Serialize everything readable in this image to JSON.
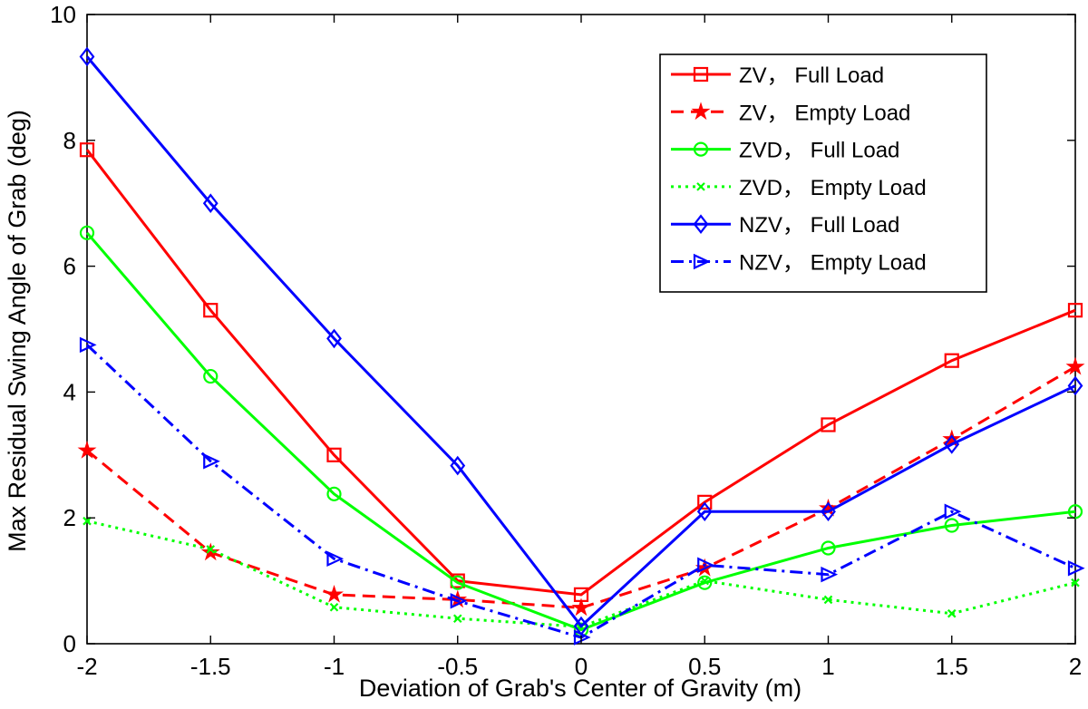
{
  "chart_data": {
    "type": "line",
    "title": "",
    "xlabel": "Deviation of Grab's Center of Gravity (m)",
    "ylabel": "Max Residual Swing Angle of Grab (deg)",
    "xlim": [
      -2,
      2
    ],
    "ylim": [
      0,
      10
    ],
    "xticks": [
      "-2",
      "-1.5",
      "-1",
      "-0.5",
      "0",
      "0.5",
      "1",
      "1.5",
      "2"
    ],
    "yticks": [
      "0",
      "2",
      "4",
      "6",
      "8",
      "10"
    ],
    "x": [
      -2,
      -1.5,
      -1,
      -0.5,
      0,
      0.5,
      1,
      1.5,
      2
    ],
    "legend_position": "top-right",
    "grid": false,
    "series": [
      {
        "name": "ZV， Full Load",
        "color": "#ff0000",
        "line": "solid",
        "marker": "square",
        "values": [
          7.85,
          5.3,
          3.0,
          1.0,
          0.78,
          2.25,
          3.48,
          4.5,
          5.3
        ]
      },
      {
        "name": "ZV， Empty Load",
        "color": "#ff0000",
        "line": "dashed",
        "marker": "star",
        "values": [
          3.07,
          1.45,
          0.78,
          0.7,
          0.57,
          1.2,
          2.15,
          3.25,
          4.4
        ]
      },
      {
        "name": "ZVD， Full Load",
        "color": "#00ff00",
        "line": "solid",
        "marker": "circle",
        "values": [
          6.53,
          4.25,
          2.38,
          0.97,
          0.22,
          0.97,
          1.52,
          1.88,
          2.1
        ]
      },
      {
        "name": "ZVD， Empty Load",
        "color": "#00ff00",
        "line": "dotted",
        "marker": "x",
        "values": [
          1.95,
          1.5,
          0.58,
          0.4,
          0.27,
          1.0,
          0.7,
          0.48,
          0.97
        ]
      },
      {
        "name": "NZV， Full Load",
        "color": "#0000ff",
        "line": "solid",
        "marker": "diamond",
        "values": [
          9.33,
          7.0,
          4.85,
          2.83,
          0.28,
          2.1,
          2.1,
          3.17,
          4.1
        ]
      },
      {
        "name": "NZV， Empty Load",
        "color": "#0000ff",
        "line": "dashdot",
        "marker": "triangle-right",
        "values": [
          4.75,
          2.9,
          1.35,
          0.68,
          0.1,
          1.25,
          1.1,
          2.1,
          1.2
        ]
      }
    ]
  }
}
